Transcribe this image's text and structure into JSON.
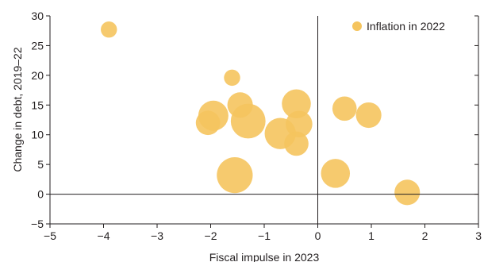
{
  "chart_data": {
    "type": "scatter",
    "title": "",
    "xlabel": "Fiscal impulse in 2023",
    "ylabel": "Change in debt, 2019–22",
    "xlim": [
      -5,
      3
    ],
    "ylim": [
      -5,
      30
    ],
    "xticks": [
      -5,
      -4,
      -3,
      -2,
      -1,
      0,
      1,
      2,
      3
    ],
    "yticks": [
      -5,
      0,
      5,
      10,
      15,
      20,
      25,
      30
    ],
    "xtick_labels": [
      "−5",
      "−4",
      "−3",
      "−2",
      "−1",
      "0",
      "1",
      "2",
      "3"
    ],
    "ytick_labels": [
      "−5",
      "0",
      "5",
      "10",
      "15",
      "20",
      "25",
      "30"
    ],
    "grid": false,
    "legend_position": "top-right",
    "series": [
      {
        "name": "Inflation in 2022",
        "color": "#f5c45e",
        "points": [
          {
            "x": -3.9,
            "y": 27.7,
            "size": 1.4
          },
          {
            "x": -1.6,
            "y": 19.6,
            "size": 1.4
          },
          {
            "x": -1.45,
            "y": 15.0,
            "size": 2.2
          },
          {
            "x": -1.95,
            "y": 13.2,
            "size": 2.6
          },
          {
            "x": -2.05,
            "y": 12.0,
            "size": 2.1
          },
          {
            "x": -1.3,
            "y": 12.3,
            "size": 3.0
          },
          {
            "x": -0.4,
            "y": 15.2,
            "size": 2.5
          },
          {
            "x": -0.7,
            "y": 10.2,
            "size": 2.7
          },
          {
            "x": -0.35,
            "y": 11.8,
            "size": 2.3
          },
          {
            "x": -0.4,
            "y": 8.5,
            "size": 2.1
          },
          {
            "x": 0.5,
            "y": 14.4,
            "size": 2.1
          },
          {
            "x": 0.95,
            "y": 13.3,
            "size": 2.2
          },
          {
            "x": 0.33,
            "y": 3.5,
            "size": 2.5
          },
          {
            "x": -1.55,
            "y": 3.2,
            "size": 3.1
          },
          {
            "x": 1.67,
            "y": 0.3,
            "size": 2.2
          }
        ]
      }
    ]
  }
}
